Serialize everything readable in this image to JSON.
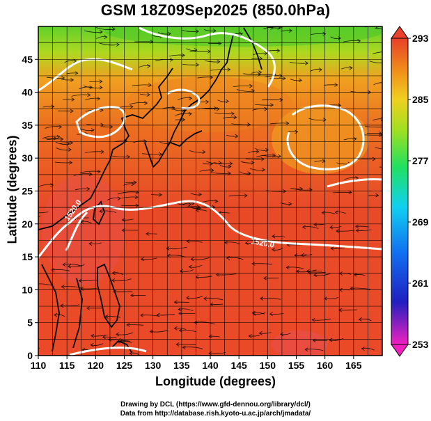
{
  "title": "GSM 18Z09Sep2025 (850.0hPa)",
  "xlabel": "Longitude (degrees)",
  "ylabel": "Latitude  (degrees)",
  "x_ticks": [
    "110",
    "115",
    "120",
    "125",
    "130",
    "135",
    "140",
    "145",
    "150",
    "155",
    "160",
    "165"
  ],
  "y_ticks": [
    "0",
    "5",
    "10",
    "15",
    "20",
    "25",
    "30",
    "35",
    "40",
    "45"
  ],
  "colorbar_ticks": [
    "293",
    "285",
    "277",
    "269",
    "261",
    "253"
  ],
  "contour_labels": [
    "1520.0",
    "1520.0"
  ],
  "credit_drawing": "Drawing by DCL (https://www.gfd-dennou.org/library/dcl/)",
  "credit_data": "Data from http://database.rish.kyoto-u.ac.jp/arch/jmadata/",
  "colors": {
    "warm": "#e8402a",
    "orange": "#f08a1a",
    "yellow": "#f0d020",
    "green": "#5fd02a",
    "contour": "#ffffff"
  }
}
